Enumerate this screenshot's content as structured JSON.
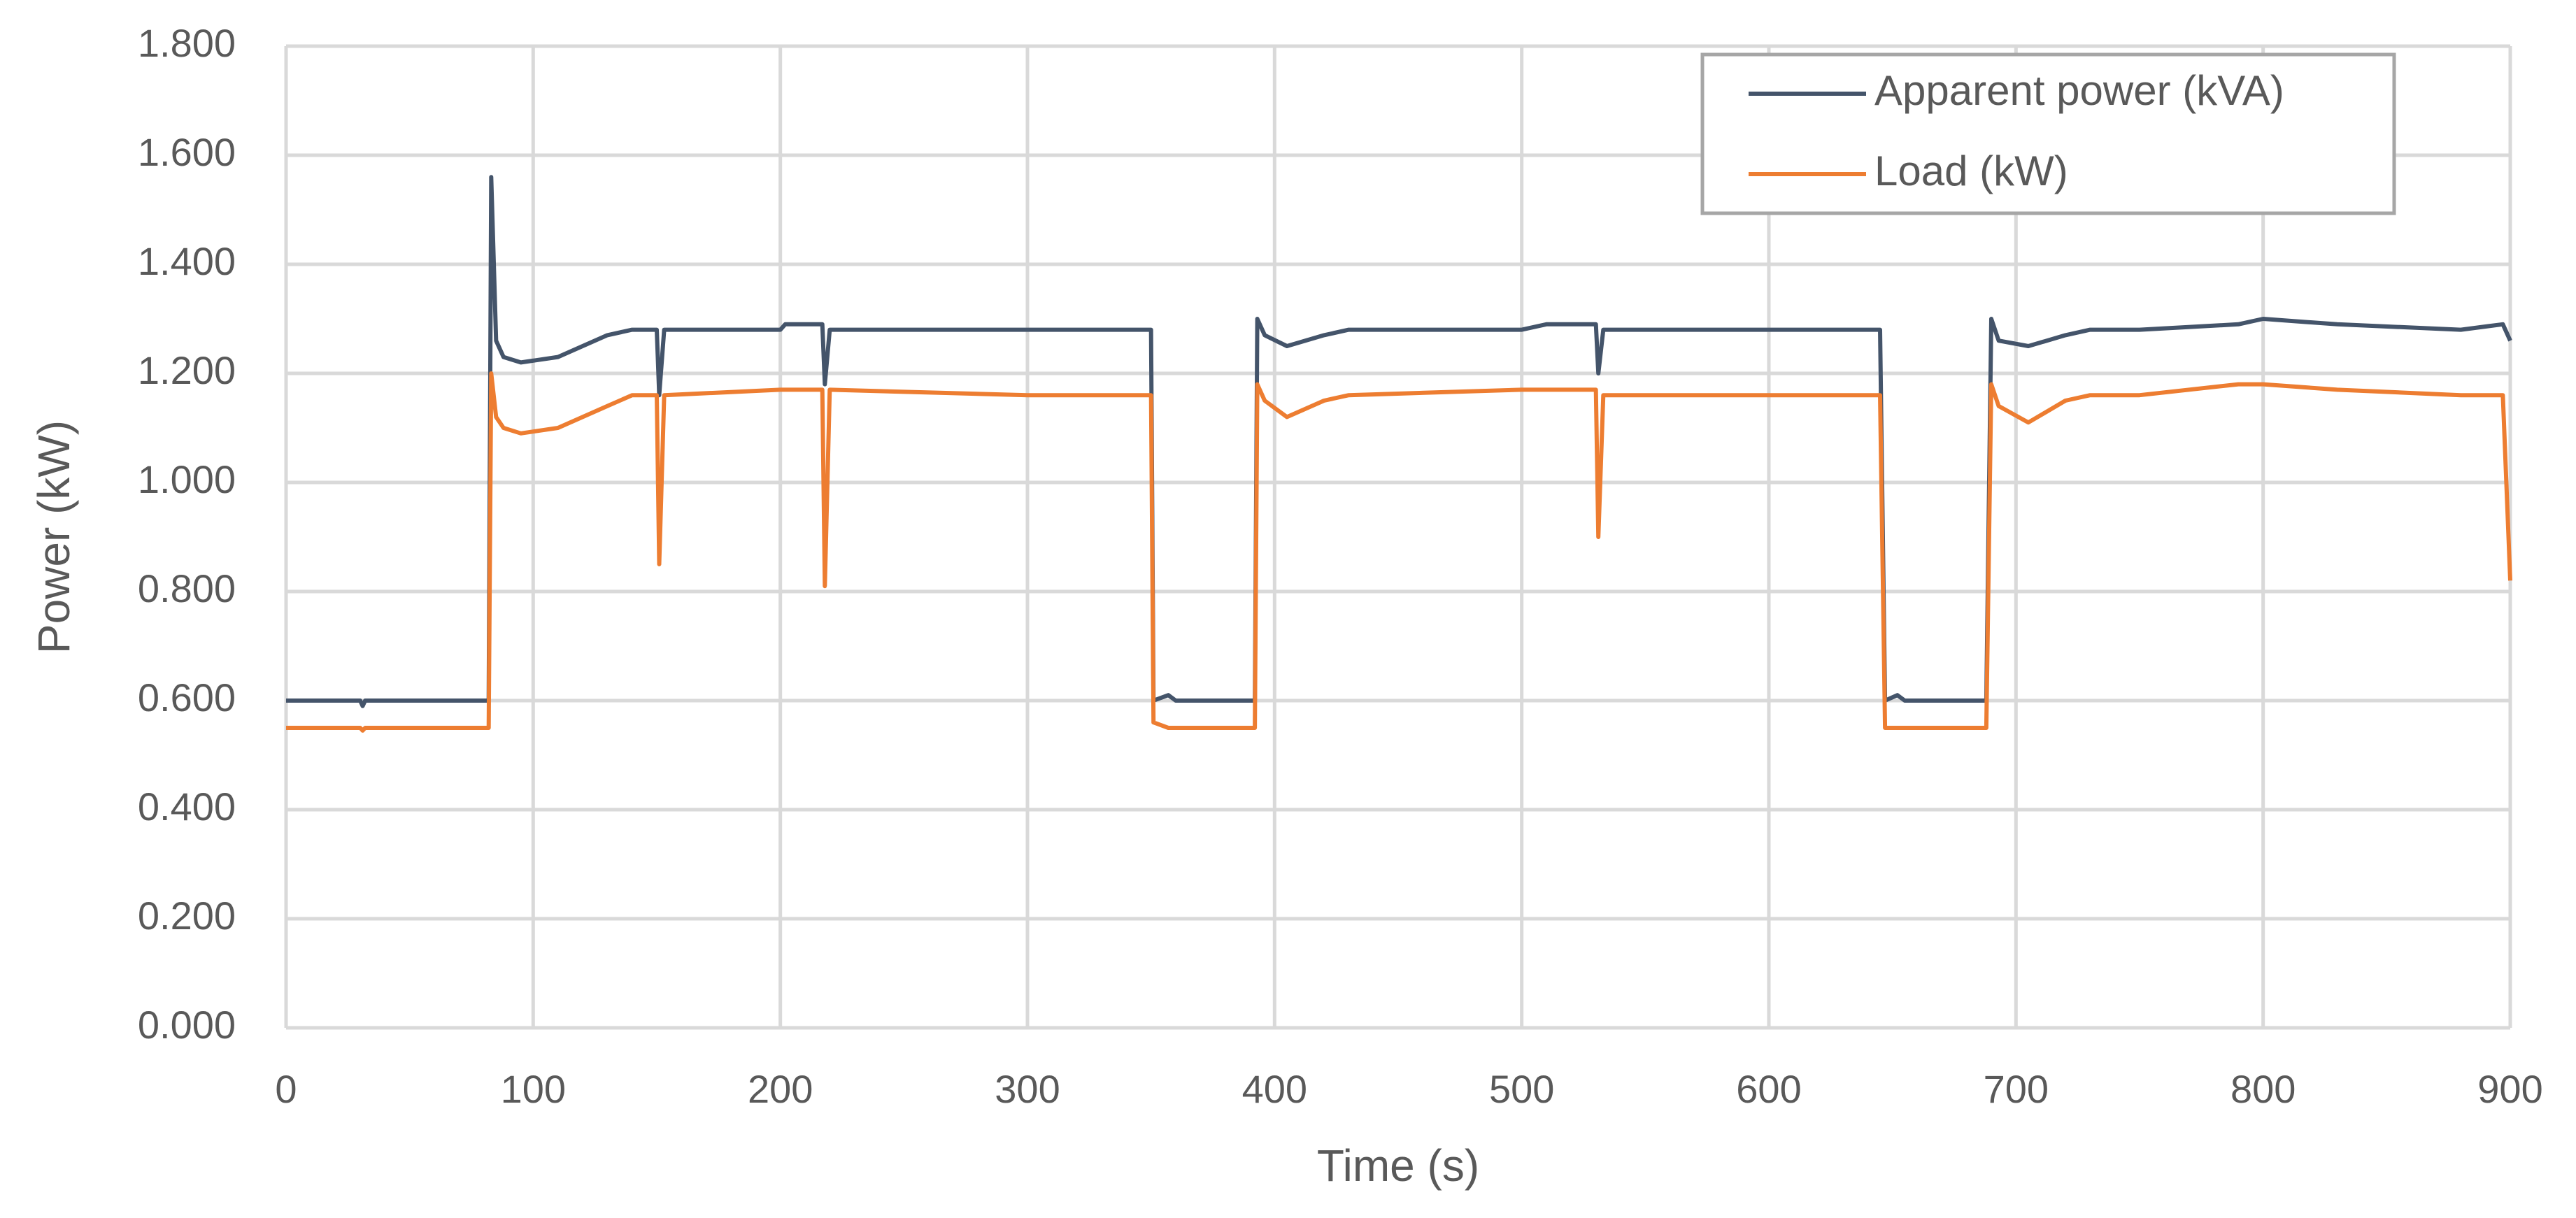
{
  "chart_data": {
    "type": "line",
    "x_label": "Time (s)",
    "y_label": "Power (kW)",
    "x": [
      0,
      30,
      31,
      32,
      82,
      83,
      85,
      88,
      95,
      110,
      130,
      140,
      150,
      151,
      153,
      200,
      202,
      217,
      218,
      220,
      300,
      350,
      351,
      357,
      360,
      392,
      393,
      396,
      405,
      420,
      430,
      500,
      510,
      530,
      531,
      533,
      600,
      645,
      647,
      652,
      655,
      688,
      690,
      693,
      705,
      720,
      730,
      750,
      790,
      800,
      830,
      880,
      897,
      900
    ],
    "series": [
      {
        "name": "Apparent power (kVA)",
        "color": "#44546a",
        "values": [
          0.6,
          0.6,
          0.59,
          0.6,
          0.6,
          1.56,
          1.26,
          1.23,
          1.22,
          1.23,
          1.27,
          1.28,
          1.28,
          1.16,
          1.28,
          1.28,
          1.29,
          1.29,
          1.18,
          1.28,
          1.28,
          1.28,
          0.6,
          0.61,
          0.6,
          0.6,
          1.3,
          1.27,
          1.25,
          1.27,
          1.28,
          1.28,
          1.29,
          1.29,
          1.2,
          1.28,
          1.28,
          1.28,
          0.6,
          0.61,
          0.6,
          0.6,
          1.3,
          1.26,
          1.25,
          1.27,
          1.28,
          1.28,
          1.29,
          1.3,
          1.29,
          1.28,
          1.29,
          1.26
        ]
      },
      {
        "name": "Load (kW)",
        "color": "#ed7d31",
        "values": [
          0.55,
          0.55,
          0.545,
          0.55,
          0.55,
          1.2,
          1.12,
          1.1,
          1.09,
          1.1,
          1.14,
          1.16,
          1.16,
          0.85,
          1.16,
          1.17,
          1.17,
          1.17,
          0.81,
          1.17,
          1.16,
          1.16,
          0.56,
          0.55,
          0.55,
          0.55,
          1.18,
          1.15,
          1.12,
          1.15,
          1.16,
          1.17,
          1.17,
          1.17,
          0.9,
          1.16,
          1.16,
          1.16,
          0.55,
          0.55,
          0.55,
          0.55,
          1.18,
          1.14,
          1.11,
          1.15,
          1.16,
          1.16,
          1.18,
          1.18,
          1.17,
          1.16,
          1.16,
          0.82
        ]
      }
    ],
    "xlim": [
      0,
      900
    ],
    "xticks": [
      0,
      100,
      200,
      300,
      400,
      500,
      600,
      700,
      800,
      900
    ],
    "ylim": [
      0,
      1.8
    ],
    "yticks": [
      {
        "value": 0,
        "label": "0.000"
      },
      {
        "value": 0.2,
        "label": "0.200"
      },
      {
        "value": 0.4,
        "label": "0.400"
      },
      {
        "value": 0.6,
        "label": "0.600"
      },
      {
        "value": 0.8,
        "label": "0.800"
      },
      {
        "value": 1.0,
        "label": "1.000"
      },
      {
        "value": 1.2,
        "label": "1.200"
      },
      {
        "value": 1.4,
        "label": "1.400"
      },
      {
        "value": 1.6,
        "label": "1.600"
      },
      {
        "value": 1.8,
        "label": "1.800"
      }
    ],
    "grid": true,
    "legend": "upper-right"
  }
}
